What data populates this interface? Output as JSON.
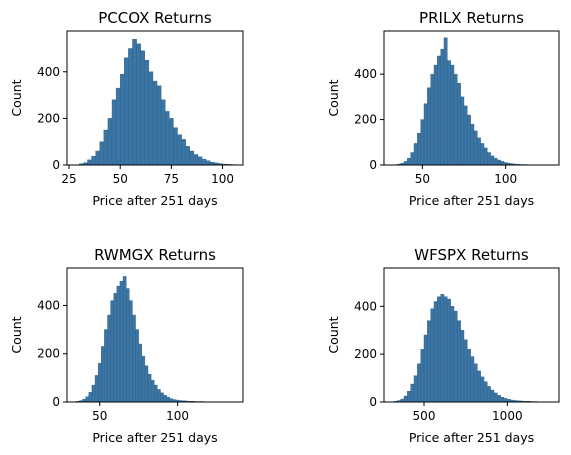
{
  "chart_data": [
    {
      "type": "bar",
      "title": "PCCOX Returns",
      "xlabel": "Price after 251 days",
      "ylabel": "Count",
      "xlim": [
        24,
        110
      ],
      "ylim": [
        0,
        575
      ],
      "xticks": [
        25,
        50,
        75,
        100
      ],
      "yticks": [
        0,
        200,
        400
      ],
      "bar_color": "#3b75a5",
      "bin_edges": [
        30,
        32,
        34,
        36,
        38,
        40,
        42,
        44,
        46,
        48,
        50,
        52,
        54,
        56,
        58,
        60,
        62,
        64,
        66,
        68,
        70,
        72,
        74,
        76,
        78,
        80,
        82,
        84,
        86,
        88,
        90,
        92,
        94,
        96,
        98,
        100,
        102,
        104,
        106
      ],
      "values": [
        5,
        10,
        22,
        38,
        60,
        100,
        150,
        200,
        280,
        330,
        390,
        460,
        500,
        540,
        520,
        490,
        450,
        400,
        360,
        340,
        280,
        230,
        200,
        160,
        130,
        110,
        80,
        60,
        45,
        35,
        25,
        18,
        12,
        9,
        6,
        4,
        3,
        2
      ]
    },
    {
      "type": "bar",
      "title": "PRILX Returns",
      "xlabel": "Price after 251 days",
      "ylabel": "Count",
      "xlim": [
        27,
        132
      ],
      "ylim": [
        0,
        590
      ],
      "xticks": [
        50,
        100
      ],
      "yticks": [
        0,
        200,
        400
      ],
      "bar_color": "#3b75a5",
      "bin_edges": [
        35,
        37,
        39,
        41,
        43,
        45,
        47,
        49,
        51,
        53,
        55,
        57,
        59,
        61,
        63,
        65,
        67,
        69,
        71,
        73,
        75,
        77,
        79,
        81,
        83,
        85,
        87,
        89,
        91,
        93,
        95,
        97,
        99,
        101,
        103,
        105,
        107,
        109,
        111,
        113,
        115,
        117,
        119,
        121,
        123,
        125
      ],
      "values": [
        4,
        8,
        16,
        30,
        55,
        95,
        140,
        200,
        270,
        340,
        400,
        440,
        480,
        510,
        560,
        460,
        440,
        400,
        360,
        300,
        260,
        220,
        180,
        150,
        120,
        95,
        75,
        55,
        40,
        30,
        22,
        16,
        11,
        8,
        6,
        4,
        3,
        2,
        2,
        1,
        1,
        1,
        1,
        1,
        1
      ]
    },
    {
      "type": "bar",
      "title": "RWMGX Returns",
      "xlabel": "Price after 251 days",
      "ylabel": "Count",
      "xlim": [
        29,
        142
      ],
      "ylim": [
        0,
        555
      ],
      "xticks": [
        50,
        100
      ],
      "yticks": [
        0,
        200,
        400
      ],
      "bar_color": "#3b75a5",
      "bin_edges": [
        35,
        37,
        39,
        41,
        43,
        45,
        47,
        49,
        51,
        53,
        55,
        57,
        59,
        61,
        63,
        65,
        67,
        69,
        71,
        73,
        75,
        77,
        79,
        81,
        83,
        85,
        87,
        89,
        91,
        93,
        95,
        97,
        99,
        101,
        103,
        105,
        107,
        109,
        111,
        113,
        115,
        117,
        119,
        121,
        123,
        125,
        127,
        129,
        131,
        133,
        135,
        137
      ],
      "values": [
        3,
        6,
        12,
        22,
        40,
        70,
        110,
        160,
        230,
        300,
        360,
        420,
        450,
        480,
        500,
        520,
        470,
        420,
        360,
        300,
        240,
        190,
        150,
        115,
        90,
        70,
        52,
        38,
        28,
        20,
        14,
        10,
        8,
        6,
        5,
        4,
        3,
        3,
        2,
        2,
        2,
        1,
        1,
        1,
        1,
        1,
        1,
        1,
        1,
        1,
        1
      ]
    },
    {
      "type": "bar",
      "title": "WFSPX Returns",
      "xlabel": "Price after 251 days",
      "ylabel": "Count",
      "xlim": [
        260,
        1310
      ],
      "ylim": [
        0,
        560
      ],
      "xticks": [
        500,
        1000
      ],
      "yticks": [
        0,
        200,
        400
      ],
      "bar_color": "#3b75a5",
      "bin_edges": [
        320,
        340,
        360,
        380,
        400,
        420,
        440,
        460,
        480,
        500,
        520,
        540,
        560,
        580,
        600,
        620,
        640,
        660,
        680,
        700,
        720,
        740,
        760,
        780,
        800,
        820,
        840,
        860,
        880,
        900,
        920,
        940,
        960,
        980,
        1000,
        1020,
        1040,
        1060,
        1080,
        1100,
        1120,
        1140,
        1160,
        1180,
        1200,
        1220,
        1240,
        1260
      ],
      "values": [
        3,
        6,
        12,
        25,
        45,
        75,
        110,
        160,
        220,
        280,
        340,
        390,
        420,
        440,
        450,
        440,
        430,
        400,
        380,
        340,
        300,
        260,
        220,
        190,
        160,
        130,
        105,
        85,
        65,
        50,
        38,
        28,
        20,
        15,
        11,
        8,
        6,
        5,
        4,
        3,
        3,
        2,
        2,
        1,
        1,
        1,
        1
      ]
    }
  ]
}
